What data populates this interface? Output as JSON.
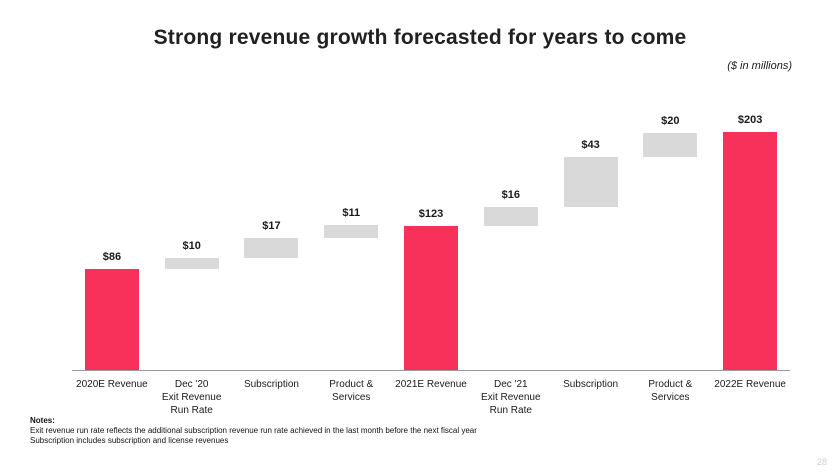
{
  "slide": {
    "title": "Strong revenue growth forecasted for years to come",
    "units_note": "($ in millions)",
    "notes": {
      "heading": "Notes:",
      "lines": [
        "Exit revenue run rate reflects the additional subscription revenue run rate achieved in the last month before the next fiscal year",
        "Subscription includes subscription and license revenues"
      ]
    },
    "page_number": "28"
  },
  "chart_data": {
    "type": "bar",
    "subtype": "waterfall",
    "title": "Strong revenue growth forecasted for years to come",
    "units": "$ in millions",
    "categories": [
      "2020E Revenue",
      "Dec '20\nExit Revenue\nRun Rate",
      "Subscription",
      "Product &\nServices",
      "2021E Revenue",
      "Dec '21\nExit Revenue\nRun Rate",
      "Subscription",
      "Product &\nServices",
      "2022E Revenue"
    ],
    "values": [
      86,
      10,
      17,
      11,
      123,
      16,
      43,
      20,
      203
    ],
    "data_labels": [
      "$86",
      "$10",
      "$17",
      "$11",
      "$123",
      "$16",
      "$43",
      "$20",
      "$203"
    ],
    "bar_roles": [
      "total",
      "delta",
      "delta",
      "delta",
      "total",
      "delta",
      "delta",
      "delta",
      "total"
    ],
    "colors": {
      "total_bar": "#F8315A",
      "delta_bar": "#D9D9D9",
      "axis_line": "#9A9A9A"
    },
    "ylim": [
      0,
      210
    ],
    "xlabel": "",
    "ylabel": "",
    "grid": false,
    "legend": "none"
  }
}
